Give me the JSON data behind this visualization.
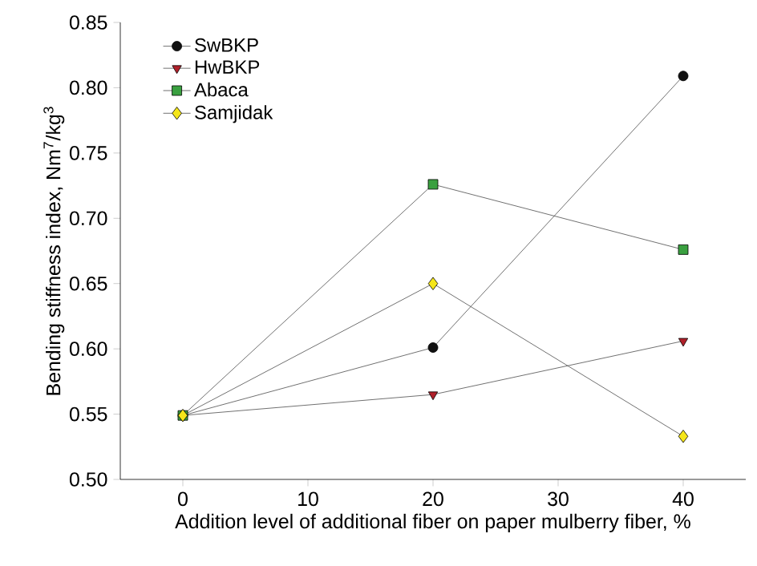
{
  "chart_data": {
    "type": "line",
    "xlabel": "Addition level of additional fiber on paper mulberry fiber, %",
    "ylabel": "Bending stiffness index, Nm$^{7}$/kg$^{3}$",
    "x": [
      0,
      20,
      40
    ],
    "series": [
      {
        "name": "SwBKP",
        "color": "#111111",
        "marker": "circle",
        "values": [
          0.549,
          0.601,
          0.809
        ]
      },
      {
        "name": "HwBKP",
        "color": "#b0202a",
        "marker": "triangle",
        "values": [
          0.549,
          0.565,
          0.606
        ]
      },
      {
        "name": "Abaca",
        "color": "#3aa040",
        "marker": "square",
        "values": [
          0.549,
          0.726,
          0.676
        ]
      },
      {
        "name": "Samjidak",
        "color": "#f5e61a",
        "marker": "diamond",
        "values": [
          0.549,
          0.65,
          0.533
        ]
      }
    ],
    "xlim": [
      -5,
      45
    ],
    "ylim": [
      0.5,
      0.85
    ],
    "xticks": [
      0,
      10,
      20,
      30,
      40
    ],
    "yticks": [
      {
        "value": 0.5,
        "label": "0.50"
      },
      {
        "value": 0.55,
        "label": "0.55"
      },
      {
        "value": 0.6,
        "label": "0.60"
      },
      {
        "value": 0.65,
        "label": "0.65"
      },
      {
        "value": 0.7,
        "label": "0.70"
      },
      {
        "value": 0.75,
        "label": "0.75"
      },
      {
        "value": 0.8,
        "label": "0.80"
      },
      {
        "value": 0.85,
        "label": "0.85"
      }
    ],
    "legend": "top left",
    "grid": false,
    "line_style": "solid"
  }
}
